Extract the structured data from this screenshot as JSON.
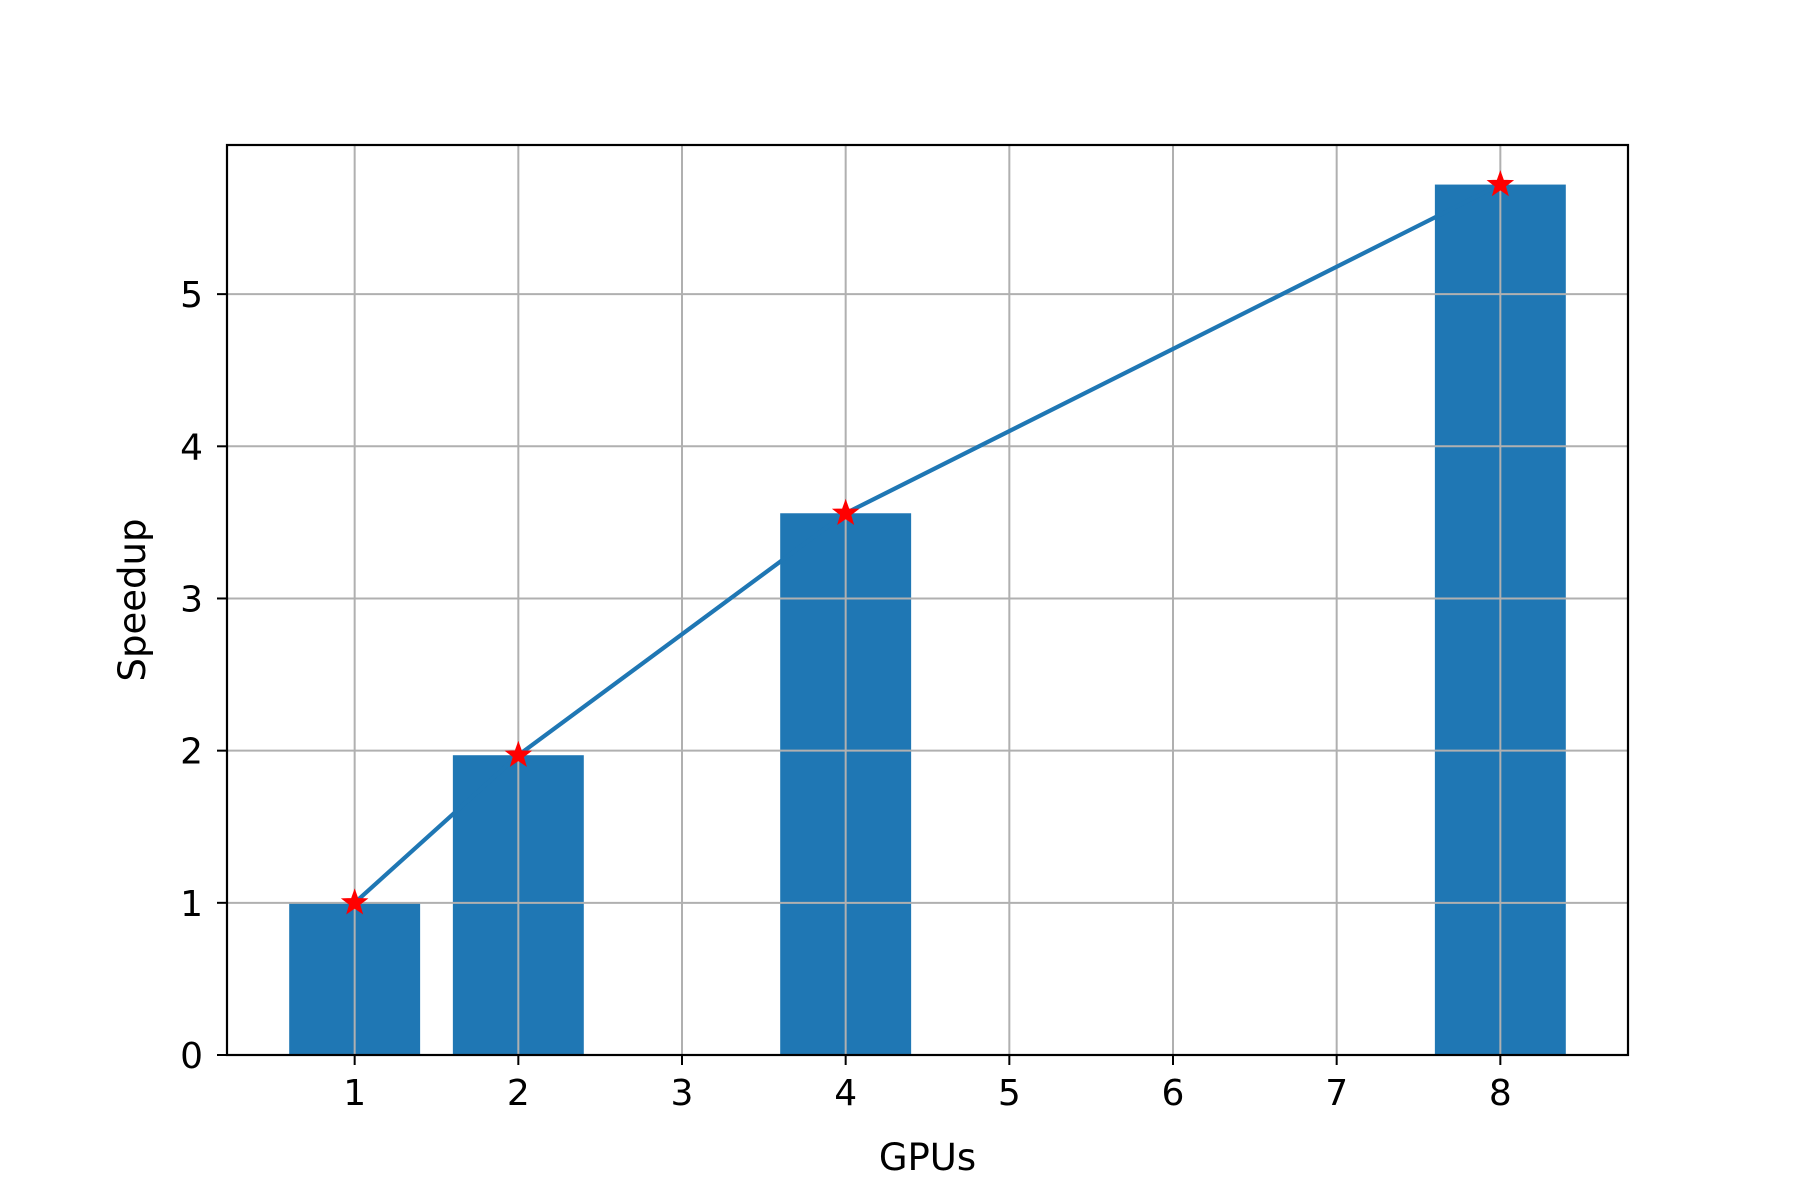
{
  "chart_data": {
    "type": "bar",
    "xlabel": "GPUs",
    "ylabel": "Speedup",
    "xlim": [
      0.22,
      8.78
    ],
    "ylim": [
      0,
      5.98
    ],
    "grid": true,
    "xticks": [
      1,
      2,
      3,
      4,
      5,
      6,
      7,
      8
    ],
    "yticks": [
      0,
      1,
      2,
      3,
      4,
      5
    ],
    "bar_color": "#1f77b4",
    "line_color": "#1f77b4",
    "marker_color": "#ff0000",
    "marker": "star",
    "x": [
      1,
      2,
      4,
      8
    ],
    "values": [
      1.0,
      1.97,
      3.56,
      5.72
    ]
  }
}
